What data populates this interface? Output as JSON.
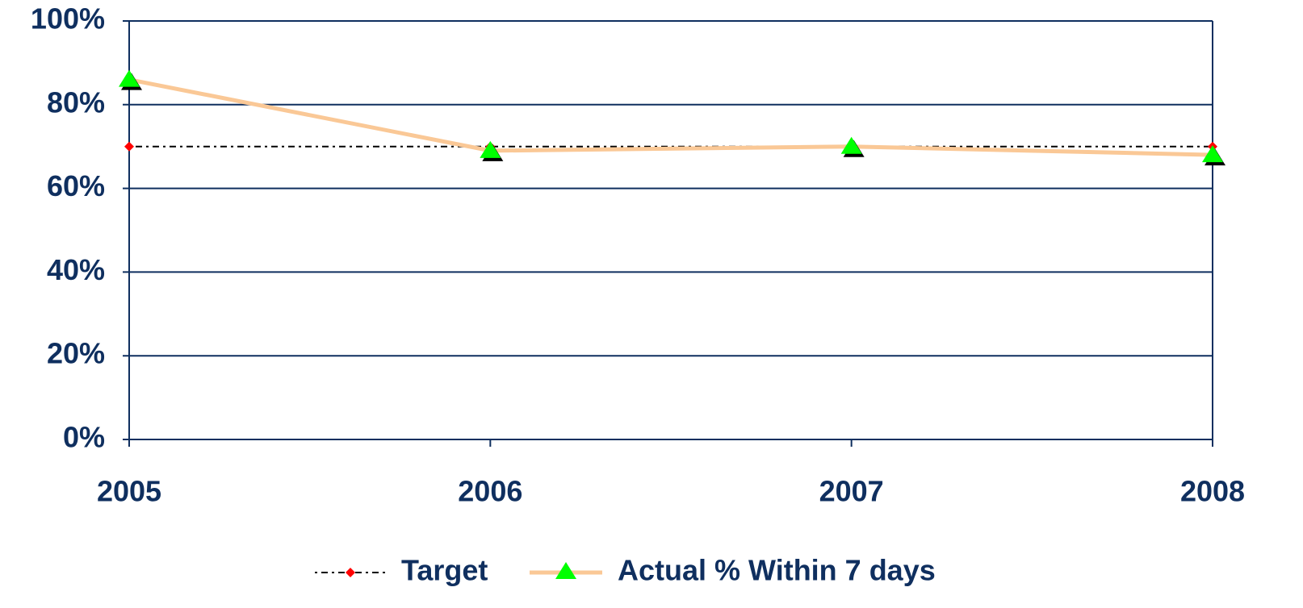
{
  "chart_data": {
    "type": "line",
    "categories": [
      "2005",
      "2006",
      "2007",
      "2008"
    ],
    "series": [
      {
        "name": "Target",
        "color": "#000000",
        "marker": "diamond",
        "marker_color": "#ff0000",
        "line_style": "dotted",
        "values": [
          70,
          70,
          70,
          70
        ]
      },
      {
        "name": "Actual % Within 7 days",
        "color": "#fac896",
        "marker": "triangle",
        "marker_color": "#00ff00",
        "line_style": "solid",
        "values": [
          86,
          69,
          70,
          68
        ]
      }
    ],
    "ylim": [
      0,
      100
    ],
    "yticks": [
      {
        "value": 0,
        "label": "0%"
      },
      {
        "value": 20,
        "label": "20%"
      },
      {
        "value": 40,
        "label": "40%"
      },
      {
        "value": 60,
        "label": "60%"
      },
      {
        "value": 80,
        "label": "80%"
      },
      {
        "value": 100,
        "label": "100%"
      }
    ],
    "grid": true,
    "legend": "bottom"
  }
}
